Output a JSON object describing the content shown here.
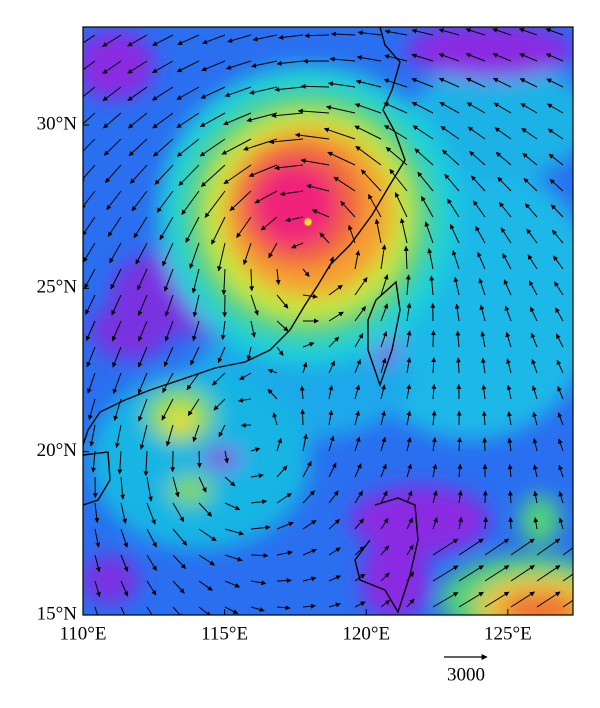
{
  "map": {
    "xlim": [
      110,
      127.3
    ],
    "ylim": [
      15,
      33
    ],
    "xticks": [
      {
        "value": 110,
        "label": "110°E"
      },
      {
        "value": 115,
        "label": "115°E"
      },
      {
        "value": 120,
        "label": "120°E"
      },
      {
        "value": 125,
        "label": "125°E"
      }
    ],
    "yticks": [
      {
        "value": 15,
        "label": "15°N"
      },
      {
        "value": 20,
        "label": "20°N"
      },
      {
        "value": 25,
        "label": "25°N"
      },
      {
        "value": 30,
        "label": "30°N"
      }
    ],
    "reference_vector": 3000
  }
}
